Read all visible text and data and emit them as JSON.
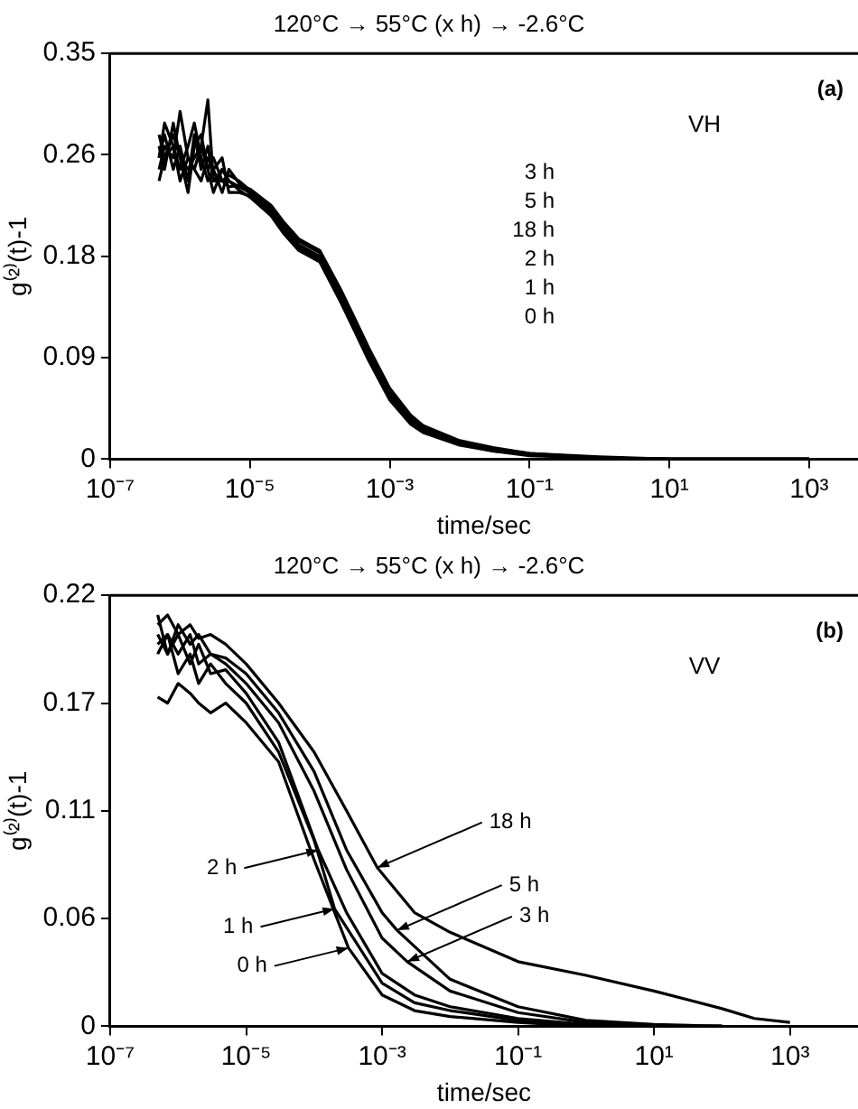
{
  "chart_data": [
    {
      "type": "line",
      "title": "120°C → 55°C (x h) → -2.6°C",
      "xlabel": "time/sec",
      "ylabel": "g⁽²⁾(t)-1",
      "log": "x",
      "grid": false,
      "legend": false,
      "marker": "none",
      "line_style": "solid",
      "xlim": [
        1e-07,
        5000
      ],
      "xticks": [
        {
          "value": 1e-07,
          "label": "10⁻⁷"
        },
        {
          "value": 1e-05,
          "label": "10⁻⁵"
        },
        {
          "value": 0.001,
          "label": "10⁻³"
        },
        {
          "value": 0.1,
          "label": "10⁻¹"
        },
        {
          "value": 10,
          "label": "10¹"
        },
        {
          "value": 1000,
          "label": "10³"
        }
      ],
      "ylim": [
        0,
        0.35
      ],
      "yticks": [
        0,
        {
          "value": 0.0875,
          "label": "0.09"
        },
        {
          "value": 0.175,
          "label": "0.18"
        },
        {
          "value": 0.2625,
          "label": "0.26"
        },
        0.35
      ],
      "annotations": [
        "(a)",
        "VH",
        "3 h",
        "5 h",
        "18 h",
        "2 h",
        "1 h",
        "0 h"
      ],
      "x": [
        5e-07,
        6e-07,
        8e-07,
        1e-06,
        1.3e-06,
        1.6e-06,
        2e-06,
        2.5e-06,
        3e-06,
        4e-06,
        5e-06,
        7e-06,
        1e-05,
        2e-05,
        3e-05,
        5e-05,
        0.0001,
        0.0002,
        0.0003,
        0.0005,
        0.001,
        0.002,
        0.003,
        0.01,
        0.03,
        0.1,
        1,
        10,
        100,
        1000
      ],
      "series": [
        {
          "color": "#000000",
          "values": [
            0.26,
            0.28,
            0.25,
            0.27,
            0.24,
            0.28,
            0.25,
            0.27,
            0.24,
            0.25,
            0.24,
            0.235,
            0.23,
            0.215,
            0.2,
            0.185,
            0.175,
            0.14,
            0.118,
            0.09,
            0.056,
            0.034,
            0.026,
            0.014,
            0.008,
            0.004,
            0.001,
            0,
            0,
            0
          ]
        },
        {
          "color": "#000000",
          "values": [
            0.27,
            0.25,
            0.29,
            0.26,
            0.25,
            0.26,
            0.27,
            0.25,
            0.26,
            0.24,
            0.245,
            0.24,
            0.232,
            0.217,
            0.203,
            0.188,
            0.178,
            0.143,
            0.121,
            0.093,
            0.059,
            0.036,
            0.028,
            0.015,
            0.009,
            0.005,
            0.001,
            0,
            0,
            0
          ]
        },
        {
          "color": "#000000",
          "values": [
            0.25,
            0.27,
            0.26,
            0.3,
            0.26,
            0.25,
            0.24,
            0.26,
            0.25,
            0.26,
            0.23,
            0.23,
            0.227,
            0.212,
            0.197,
            0.182,
            0.172,
            0.137,
            0.115,
            0.087,
            0.053,
            0.032,
            0.024,
            0.013,
            0.007,
            0.004,
            0.001,
            0,
            0,
            0
          ]
        },
        {
          "color": "#000000",
          "values": [
            0.28,
            0.26,
            0.27,
            0.25,
            0.27,
            0.29,
            0.26,
            0.24,
            0.25,
            0.23,
            0.25,
            0.238,
            0.229,
            0.214,
            0.199,
            0.184,
            0.174,
            0.139,
            0.117,
            0.089,
            0.055,
            0.033,
            0.025,
            0.014,
            0.008,
            0.004,
            0.001,
            0,
            0,
            0
          ]
        },
        {
          "color": "#000000",
          "values": [
            0.24,
            0.26,
            0.28,
            0.26,
            0.23,
            0.27,
            0.28,
            0.25,
            0.23,
            0.25,
            0.24,
            0.232,
            0.226,
            0.21,
            0.195,
            0.18,
            0.17,
            0.135,
            0.113,
            0.085,
            0.051,
            0.03,
            0.023,
            0.012,
            0.007,
            0.003,
            0.001,
            0,
            0,
            0
          ]
        },
        {
          "color": "#000000",
          "values": [
            0.26,
            0.29,
            0.27,
            0.24,
            0.26,
            0.25,
            0.27,
            0.31,
            0.24,
            0.24,
            0.235,
            0.236,
            0.233,
            0.219,
            0.205,
            0.19,
            0.18,
            0.146,
            0.124,
            0.096,
            0.061,
            0.038,
            0.029,
            0.016,
            0.01,
            0.005,
            0.002,
            0,
            0,
            0
          ]
        }
      ]
    },
    {
      "type": "line",
      "title": "120°C → 55°C (x h) → -2.6°C",
      "xlabel": "time/sec",
      "ylabel": "g⁽²⁾(t)-1",
      "log": "x",
      "grid": false,
      "legend": false,
      "marker": "none",
      "line_style": "solid",
      "xlim": [
        1e-07,
        10000
      ],
      "xticks": [
        {
          "value": 1e-07,
          "label": "10⁻⁷"
        },
        {
          "value": 1e-05,
          "label": "10⁻⁵"
        },
        {
          "value": 0.001,
          "label": "10⁻³"
        },
        {
          "value": 0.1,
          "label": "10⁻¹"
        },
        {
          "value": 10,
          "label": "10¹"
        },
        {
          "value": 1000,
          "label": "10³"
        }
      ],
      "ylim": [
        0,
        0.22
      ],
      "yticks": [
        0,
        {
          "value": 0.055,
          "label": "0.06"
        },
        0.11,
        {
          "value": 0.165,
          "label": "0.17"
        },
        0.22
      ],
      "annotations": [
        "(b)",
        "VV",
        {
          "text": "18 h",
          "x": 0.00085,
          "y": 0.081
        },
        {
          "text": "5 h",
          "x": 0.00166,
          "y": 0.049
        },
        {
          "text": "3 h",
          "x": 0.00234,
          "y": 0.033
        },
        {
          "text": "2 h",
          "x": 0.000115,
          "y": 0.09
        },
        {
          "text": "1 h",
          "x": 0.0002,
          "y": 0.06
        },
        {
          "text": "0 h",
          "x": 0.00032,
          "y": 0.04
        }
      ],
      "series": [
        {
          "color": "#000000",
          "x": [
            5e-07,
            7e-07,
            1e-06,
            1.5e-06,
            2e-06,
            3e-06,
            5e-06,
            1e-05,
            3e-05,
            0.0001,
            0.0003,
            0.00085,
            0.003,
            0.01,
            0.1,
            1,
            10,
            100,
            300,
            1000
          ],
          "values": [
            0.205,
            0.21,
            0.2,
            0.205,
            0.198,
            0.2,
            0.195,
            0.185,
            0.165,
            0.14,
            0.11,
            0.081,
            0.058,
            0.048,
            0.033,
            0.026,
            0.018,
            0.009,
            0.004,
            0.002
          ]
        },
        {
          "color": "#000000",
          "x": [
            5e-07,
            7e-07,
            1e-06,
            1.5e-06,
            2e-06,
            3e-06,
            5e-06,
            1e-05,
            3e-05,
            0.0001,
            0.0003,
            0.001,
            0.00166,
            0.01,
            0.1,
            1,
            10,
            100
          ],
          "values": [
            0.2,
            0.19,
            0.205,
            0.195,
            0.2,
            0.19,
            0.188,
            0.18,
            0.16,
            0.13,
            0.09,
            0.058,
            0.049,
            0.024,
            0.01,
            0.003,
            0.001,
            0
          ]
        },
        {
          "color": "#000000",
          "x": [
            5e-07,
            7e-07,
            1e-06,
            1.5e-06,
            2e-06,
            3e-06,
            5e-06,
            1e-05,
            3e-05,
            0.0001,
            0.0003,
            0.001,
            0.00234,
            0.01,
            0.1,
            1,
            10,
            100
          ],
          "values": [
            0.195,
            0.2,
            0.19,
            0.2,
            0.185,
            0.19,
            0.185,
            0.175,
            0.155,
            0.12,
            0.08,
            0.045,
            0.033,
            0.018,
            0.007,
            0.002,
            0,
            0
          ]
        },
        {
          "color": "#000000",
          "x": [
            5e-07,
            7e-07,
            1e-06,
            1.5e-06,
            2e-06,
            3e-06,
            5e-06,
            1e-05,
            3e-05,
            0.000115,
            0.0003,
            0.001,
            0.003,
            0.01,
            0.1,
            1,
            10,
            100
          ],
          "values": [
            0.21,
            0.19,
            0.2,
            0.185,
            0.195,
            0.18,
            0.182,
            0.17,
            0.145,
            0.09,
            0.058,
            0.027,
            0.016,
            0.01,
            0.004,
            0.001,
            0,
            0
          ]
        },
        {
          "color": "#000000",
          "x": [
            5e-07,
            7e-07,
            1e-06,
            1.5e-06,
            2e-06,
            3e-06,
            5e-06,
            1e-05,
            3e-05,
            0.0001,
            0.0002,
            0.001,
            0.003,
            0.01,
            0.1,
            1,
            10,
            100
          ],
          "values": [
            0.19,
            0.2,
            0.18,
            0.19,
            0.175,
            0.185,
            0.175,
            0.165,
            0.14,
            0.095,
            0.06,
            0.022,
            0.012,
            0.008,
            0.003,
            0.001,
            0,
            0
          ]
        },
        {
          "color": "#000000",
          "x": [
            5e-07,
            7e-07,
            1e-06,
            1.5e-06,
            2e-06,
            3e-06,
            5e-06,
            1e-05,
            3e-05,
            0.0001,
            0.00032,
            0.001,
            0.003,
            0.01,
            0.1,
            1,
            10,
            100
          ],
          "values": [
            0.168,
            0.165,
            0.175,
            0.17,
            0.165,
            0.16,
            0.165,
            0.155,
            0.135,
            0.085,
            0.04,
            0.016,
            0.008,
            0.005,
            0.002,
            0,
            0,
            0
          ]
        }
      ]
    }
  ]
}
